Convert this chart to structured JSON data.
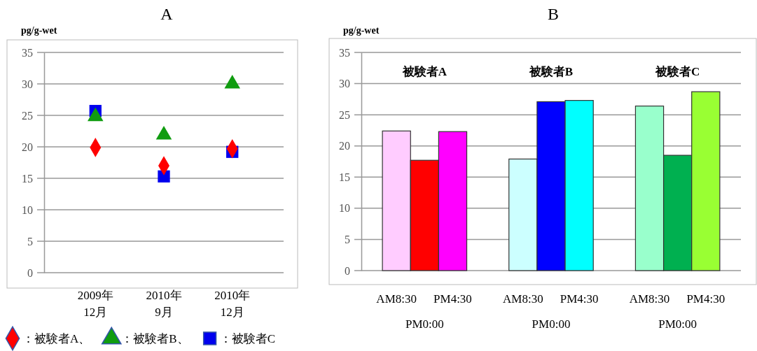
{
  "chart_data": [
    {
      "type": "scatter",
      "title": "A",
      "ylabel": "pg/g-wet",
      "categories": [
        "2009年\n12月",
        "2010年\n9月",
        "2010年\n12月"
      ],
      "series": [
        {
          "name": "：被験者A、",
          "color": "#ff0000",
          "marker": "diamond",
          "values": [
            19.9,
            17.0,
            19.7
          ]
        },
        {
          "name": "：被験者B、",
          "color": "#109c10",
          "marker": "triangle",
          "values": [
            24.8,
            21.9,
            30.0
          ]
        },
        {
          "name": "：被験者C",
          "color": "#0000ee",
          "marker": "square",
          "values": [
            25.7,
            15.3,
            19.2
          ]
        }
      ],
      "ylim": [
        0,
        35
      ],
      "yticks": [
        0,
        5,
        10,
        15,
        20,
        25,
        30,
        35
      ],
      "grid": "y",
      "legend": "bottom"
    },
    {
      "type": "bar",
      "title": "B",
      "ylabel": "pg/g-wet",
      "categories": [
        "AM8:30",
        "PM0:00",
        "PM4:30",
        "AM8:30",
        "PM0:00",
        "PM4:30",
        "AM8:30",
        "PM0:00",
        "PM4:30"
      ],
      "values": [
        22.4,
        17.7,
        22.3,
        17.9,
        27.1,
        27.3,
        26.4,
        18.5,
        28.7
      ],
      "colors": [
        "#ffccff",
        "#ff0000",
        "#ff00ff",
        "#ccffff",
        "#0000ff",
        "#00ffff",
        "#99ffcc",
        "#00b050",
        "#99ff33"
      ],
      "annotations": [
        "被験者A",
        "被験者B",
        "被験者C"
      ],
      "ylim": [
        0,
        35
      ],
      "yticks": [
        0,
        5,
        10,
        15,
        20,
        25,
        30,
        35
      ],
      "grid": "y"
    }
  ]
}
